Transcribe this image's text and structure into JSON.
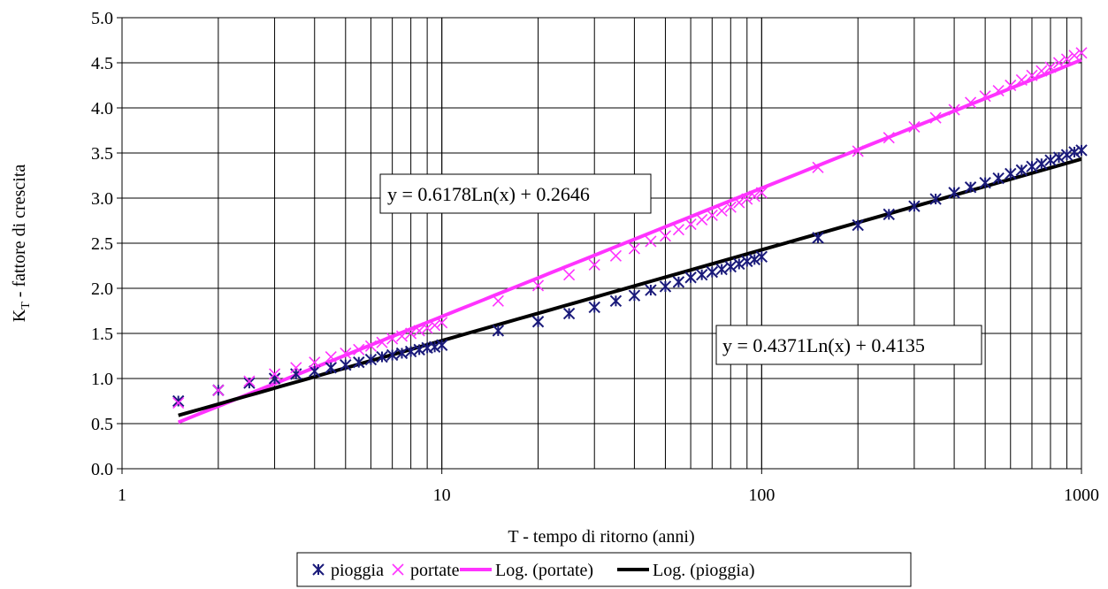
{
  "chart_data": {
    "type": "scatter",
    "title": "",
    "xlabel": "T - tempo di ritorno (anni)",
    "ylabel_main": "K",
    "ylabel_sub": "T",
    "ylabel_rest": " - fattore di crescita",
    "x_scale": "log",
    "xlim": [
      1,
      1000
    ],
    "ylim": [
      0,
      5
    ],
    "x_ticks": [
      "1",
      "10",
      "100",
      "1000"
    ],
    "y_ticks": [
      "0.0",
      "0.5",
      "1.0",
      "1.5",
      "2.0",
      "2.5",
      "3.0",
      "3.5",
      "4.0",
      "4.5",
      "5.0"
    ],
    "grid": "major and minor vertical, major horizontal",
    "legend_position": "bottom",
    "series": [
      {
        "name": "pioggia",
        "marker": "asterisk",
        "color": "#1a1a7a",
        "points": [
          [
            1.5,
            0.75
          ],
          [
            2,
            0.87
          ],
          [
            2.5,
            0.95
          ],
          [
            3,
            1.0
          ],
          [
            3.5,
            1.05
          ],
          [
            4,
            1.08
          ],
          [
            4.5,
            1.12
          ],
          [
            5,
            1.15
          ],
          [
            5.5,
            1.18
          ],
          [
            6,
            1.21
          ],
          [
            6.5,
            1.24
          ],
          [
            7,
            1.26
          ],
          [
            7.5,
            1.28
          ],
          [
            8,
            1.3
          ],
          [
            8.5,
            1.32
          ],
          [
            9,
            1.34
          ],
          [
            9.5,
            1.35
          ],
          [
            10,
            1.37
          ],
          [
            15,
            1.53
          ],
          [
            20,
            1.63
          ],
          [
            25,
            1.72
          ],
          [
            30,
            1.79
          ],
          [
            35,
            1.86
          ],
          [
            40,
            1.92
          ],
          [
            45,
            1.98
          ],
          [
            50,
            2.02
          ],
          [
            55,
            2.07
          ],
          [
            60,
            2.12
          ],
          [
            65,
            2.15
          ],
          [
            70,
            2.18
          ],
          [
            75,
            2.21
          ],
          [
            80,
            2.24
          ],
          [
            85,
            2.27
          ],
          [
            90,
            2.3
          ],
          [
            95,
            2.32
          ],
          [
            100,
            2.35
          ],
          [
            150,
            2.56
          ],
          [
            200,
            2.7
          ],
          [
            250,
            2.82
          ],
          [
            300,
            2.91
          ],
          [
            350,
            2.99
          ],
          [
            400,
            3.06
          ],
          [
            450,
            3.12
          ],
          [
            500,
            3.17
          ],
          [
            550,
            3.22
          ],
          [
            600,
            3.27
          ],
          [
            650,
            3.31
          ],
          [
            700,
            3.35
          ],
          [
            750,
            3.38
          ],
          [
            800,
            3.42
          ],
          [
            850,
            3.45
          ],
          [
            900,
            3.48
          ],
          [
            950,
            3.51
          ],
          [
            1000,
            3.53
          ]
        ]
      },
      {
        "name": "portate",
        "marker": "cross",
        "color": "#ff33ff",
        "points": [
          [
            1.5,
            0.73
          ],
          [
            2,
            0.87
          ],
          [
            2.5,
            0.97
          ],
          [
            3,
            1.05
          ],
          [
            3.5,
            1.12
          ],
          [
            4,
            1.18
          ],
          [
            4.5,
            1.24
          ],
          [
            5,
            1.28
          ],
          [
            5.5,
            1.32
          ],
          [
            6,
            1.36
          ],
          [
            6.5,
            1.4
          ],
          [
            7,
            1.44
          ],
          [
            7.5,
            1.47
          ],
          [
            8,
            1.5
          ],
          [
            8.5,
            1.53
          ],
          [
            9,
            1.56
          ],
          [
            9.5,
            1.59
          ],
          [
            10,
            1.62
          ],
          [
            15,
            1.86
          ],
          [
            20,
            2.03
          ],
          [
            25,
            2.15
          ],
          [
            30,
            2.26
          ],
          [
            35,
            2.36
          ],
          [
            40,
            2.44
          ],
          [
            45,
            2.52
          ],
          [
            50,
            2.58
          ],
          [
            55,
            2.65
          ],
          [
            60,
            2.71
          ],
          [
            65,
            2.76
          ],
          [
            70,
            2.81
          ],
          [
            75,
            2.86
          ],
          [
            80,
            2.9
          ],
          [
            85,
            2.95
          ],
          [
            90,
            2.99
          ],
          [
            95,
            3.02
          ],
          [
            100,
            3.06
          ],
          [
            150,
            3.34
          ],
          [
            200,
            3.52
          ],
          [
            250,
            3.67
          ],
          [
            300,
            3.79
          ],
          [
            350,
            3.89
          ],
          [
            400,
            3.98
          ],
          [
            450,
            4.06
          ],
          [
            500,
            4.13
          ],
          [
            550,
            4.19
          ],
          [
            600,
            4.25
          ],
          [
            650,
            4.31
          ],
          [
            700,
            4.36
          ],
          [
            750,
            4.41
          ],
          [
            800,
            4.45
          ],
          [
            850,
            4.5
          ],
          [
            900,
            4.54
          ],
          [
            950,
            4.58
          ],
          [
            1000,
            4.61
          ]
        ]
      }
    ],
    "trendlines": [
      {
        "name": "Log. (portate)",
        "color": "#ff33ff",
        "a": 0.6178,
        "b": 0.2646,
        "x_range": [
          1.5,
          1000
        ],
        "equation": "y = 0.6178Ln(x) + 0.2646"
      },
      {
        "name": "Log. (pioggia)",
        "color": "#000000",
        "a": 0.4371,
        "b": 0.4135,
        "x_range": [
          1.5,
          1000
        ],
        "equation": "y = 0.4371Ln(x) + 0.4135"
      }
    ],
    "legend": [
      {
        "label": "pioggia",
        "kind": "asterisk",
        "color": "#1a1a7a"
      },
      {
        "label": "portate",
        "kind": "cross",
        "color": "#ff33ff"
      },
      {
        "label": "Log. (portate)",
        "kind": "line",
        "color": "#ff33ff"
      },
      {
        "label": "Log. (pioggia)",
        "kind": "line",
        "color": "#000000"
      }
    ]
  }
}
